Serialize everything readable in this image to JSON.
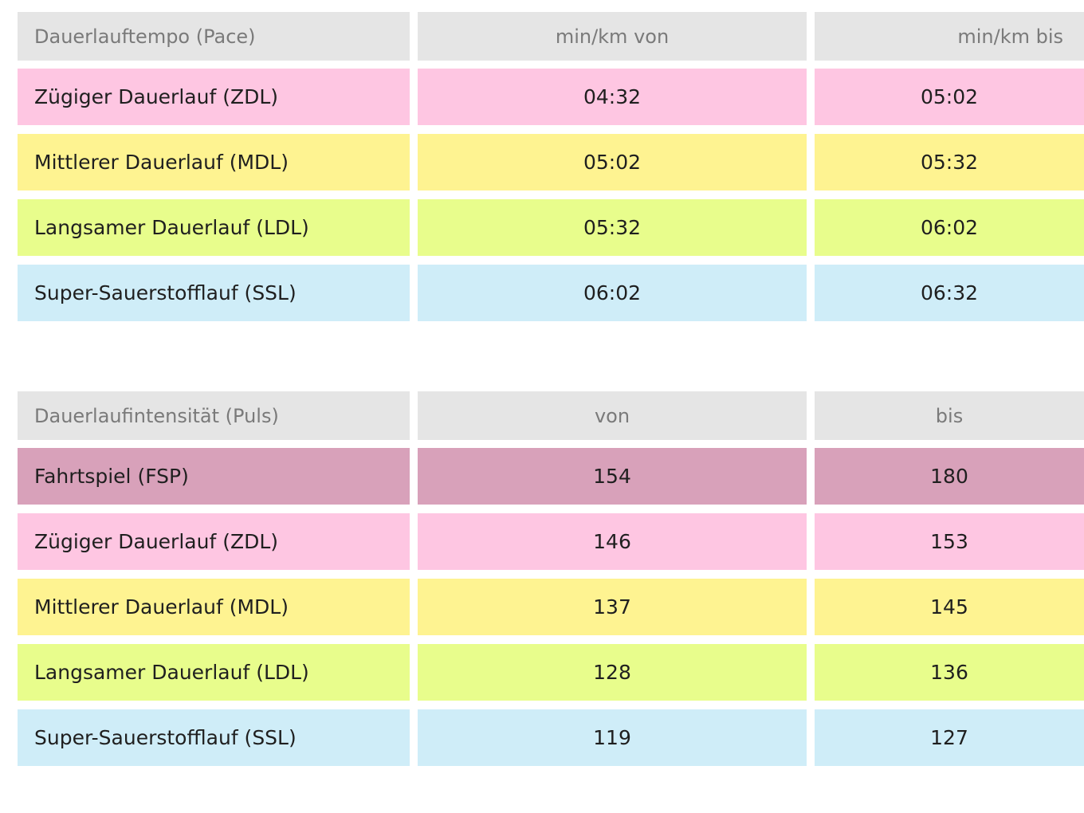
{
  "pace_table": {
    "headers": [
      "Dauerlauftempo (Pace)",
      "min/km von",
      "min/km bis"
    ],
    "rows": [
      {
        "label": "Zügiger Dauerlauf (ZDL)",
        "from": "04:32",
        "to": "05:02",
        "color": "#fec6e2"
      },
      {
        "label": "Mittlerer Dauerlauf (MDL)",
        "from": "05:02",
        "to": "05:32",
        "color": "#fef391"
      },
      {
        "label": "Langsamer Dauerlauf (LDL)",
        "from": "05:32",
        "to": "06:02",
        "color": "#e8fd8c"
      },
      {
        "label": "Super-Sauerstofflauf (SSL)",
        "from": "06:02",
        "to": "06:32",
        "color": "#cfedf8"
      }
    ]
  },
  "pulse_table": {
    "headers": [
      "Dauerlaufintensität (Puls)",
      "von",
      "bis"
    ],
    "rows": [
      {
        "label": "Fahrtspiel (FSP)",
        "from": "154",
        "to": "180",
        "color": "#d8a1ba"
      },
      {
        "label": "Zügiger Dauerlauf (ZDL)",
        "from": "146",
        "to": "153",
        "color": "#fec6e2"
      },
      {
        "label": "Mittlerer Dauerlauf (MDL)",
        "from": "137",
        "to": "145",
        "color": "#fef391"
      },
      {
        "label": "Langsamer Dauerlauf (LDL)",
        "from": "128",
        "to": "136",
        "color": "#e8fd8c"
      },
      {
        "label": "Super-Sauerstofflauf (SSL)",
        "from": "119",
        "to": "127",
        "color": "#cfedf8"
      }
    ]
  }
}
